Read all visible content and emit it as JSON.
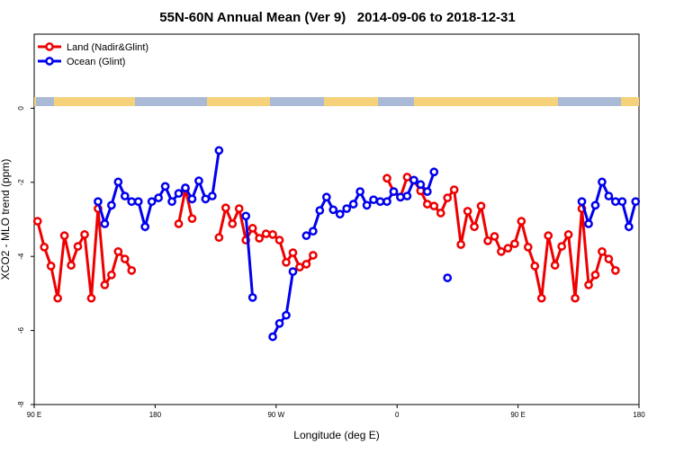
{
  "chart_data": {
    "type": "line",
    "title": "55N-60N Annual Mean (Ver 9)   2014-09-06 to 2018-12-31",
    "x_label": "Longitude (deg E)",
    "y_label": "XCO2 - MLO trend (ppm)",
    "xlim": [
      90,
      540
    ],
    "ylim": [
      -8,
      2
    ],
    "xticks": [
      {
        "value": 90,
        "label": "90 E"
      },
      180,
      {
        "value": 270,
        "label": "90 W"
      },
      {
        "value": 360,
        "label": "0"
      },
      {
        "value": 450,
        "label": "90 E"
      },
      {
        "value": 540,
        "label": "180"
      }
    ],
    "yticks": [
      0,
      -2,
      -4,
      -6,
      -8
    ],
    "legend": "top-left",
    "x": [
      92.5,
      97.5,
      102.5,
      107.5,
      112.5,
      117.5,
      122.5,
      127.5,
      132.5,
      137.5,
      142.5,
      147.5,
      152.5,
      157.5,
      162.5,
      167.5,
      172.5,
      177.5,
      182.5,
      187.5,
      192.5,
      197.5,
      202.5,
      207.5,
      212.5,
      217.5,
      222.5,
      227.5,
      232.5,
      237.5,
      242.5,
      247.5,
      252.5,
      257.5,
      262.5,
      267.5,
      272.5,
      277.5,
      282.5,
      287.5,
      292.5,
      297.5,
      302.5,
      307.5,
      312.5,
      317.5,
      322.5,
      327.5,
      332.5,
      337.5,
      342.5,
      347.5,
      352.5,
      357.5,
      362.5,
      367.5,
      372.5,
      377.5,
      382.5,
      387.5,
      392.5,
      397.5,
      402.5,
      407.5,
      412.5,
      417.5,
      422.5,
      427.5,
      432.5,
      437.5,
      442.5,
      447.5,
      452.5,
      457.5,
      462.5,
      467.5,
      472.5,
      477.5,
      482.5,
      487.5,
      492.5,
      497.5,
      502.5,
      507.5,
      512.5,
      517.5,
      522.5,
      527.5,
      532.5,
      537.5
    ],
    "series": [
      {
        "name": "Land (Nadir&Glint)",
        "color": "#ee0000",
        "values": [
          -3.05,
          -3.75,
          -4.26,
          -5.13,
          -3.44,
          -4.24,
          -3.73,
          -3.41,
          -5.13,
          -2.71,
          -4.77,
          -4.5,
          -3.87,
          -4.07,
          -4.38,
          null,
          null,
          null,
          null,
          null,
          null,
          -3.12,
          -2.18,
          -2.98,
          null,
          null,
          null,
          -3.49,
          -2.69,
          -3.12,
          -2.71,
          -3.56,
          -3.24,
          -3.51,
          -3.39,
          -3.41,
          -3.56,
          -4.16,
          -3.9,
          -4.29,
          -4.21,
          -3.97,
          null,
          null,
          null,
          null,
          null,
          null,
          null,
          null,
          null,
          null,
          -1.89,
          -2.25,
          -2.4,
          -1.86,
          -1.95,
          -2.23,
          -2.59,
          -2.64,
          -2.83,
          -2.42,
          -2.2,
          -3.68,
          -2.78,
          -3.2,
          -2.64,
          -3.58,
          -3.46,
          -3.87,
          -3.78,
          -3.66,
          -3.05,
          -3.75,
          -4.26,
          -5.13,
          -3.44,
          -4.24,
          -3.73,
          -3.41,
          -5.13,
          -2.71,
          -4.77,
          -4.5,
          -3.87,
          -4.07,
          -4.38,
          null,
          null,
          null
        ]
      },
      {
        "name": "Ocean (Glint)",
        "color": "#0000ee",
        "values": [
          null,
          null,
          null,
          null,
          null,
          null,
          null,
          null,
          null,
          -2.52,
          -3.12,
          -2.62,
          -1.99,
          -2.37,
          -2.52,
          -2.52,
          -3.2,
          -2.52,
          -2.42,
          -2.11,
          -2.52,
          -2.3,
          -2.15,
          -2.45,
          -1.96,
          -2.45,
          -2.37,
          -1.14,
          null,
          null,
          null,
          -2.91,
          -5.11,
          null,
          null,
          -6.17,
          -5.81,
          -5.59,
          -4.41,
          null,
          -3.44,
          -3.32,
          -2.76,
          -2.4,
          -2.74,
          -2.86,
          -2.71,
          -2.59,
          -2.25,
          -2.62,
          -2.47,
          -2.52,
          -2.52,
          -2.25,
          -2.4,
          -2.37,
          -1.94,
          -2.06,
          -2.25,
          -1.72,
          null,
          -4.58,
          null,
          null,
          null,
          null,
          null,
          null,
          null,
          null,
          null,
          null,
          null,
          null,
          null,
          null,
          null,
          null,
          null,
          null,
          null,
          -2.52,
          -3.12,
          -2.62,
          -1.99,
          -2.37,
          -2.52,
          -2.52,
          -3.2,
          -2.52
        ]
      }
    ]
  }
}
